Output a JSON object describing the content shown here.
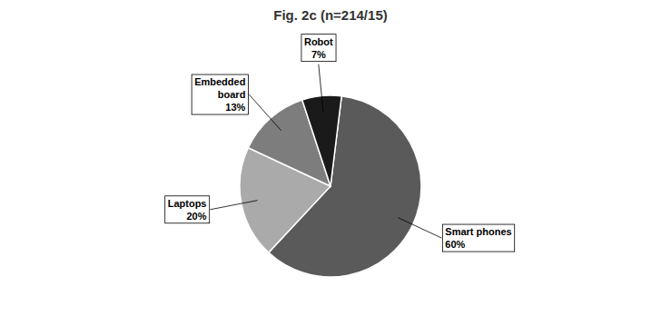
{
  "chart_data": {
    "type": "pie",
    "title": "Fig. 2c (n=214/15)",
    "categories": [
      "Smart phones\n60%",
      "Laptops\n20%",
      "Embedded\nboard\n13%",
      "Robot\n7%"
    ],
    "values": [
      60,
      20,
      13,
      7
    ],
    "colors": [
      "#5a5a5a",
      "#aaaaaa",
      "#7d7d7d",
      "#1a1a1a"
    ]
  }
}
